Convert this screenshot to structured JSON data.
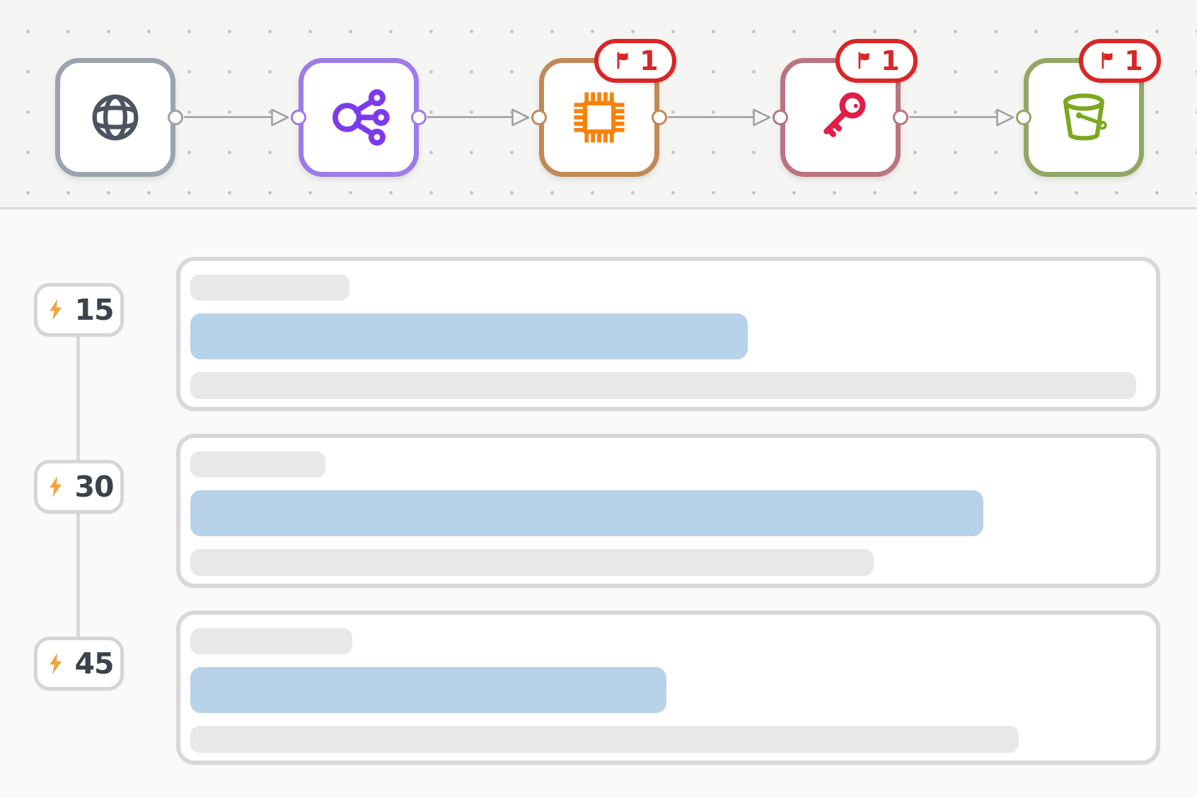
{
  "canvas": {
    "background_color": "#f5f5f3",
    "dot_color": "#c2c3c6",
    "connector_color": "#a9abb1",
    "nodes": [
      {
        "name": "node-globe",
        "icon": "globe-icon",
        "accent": "#9ca3af",
        "icon_color": "#4d5460",
        "input_port": false,
        "output_port": true,
        "flag_count": null
      },
      {
        "name": "node-load-balancer",
        "icon": "load-balancer-icon",
        "accent": "#9d7ce8",
        "icon_color": "#7c3aed",
        "input_port": true,
        "output_port": true,
        "flag_count": null
      },
      {
        "name": "node-cpu",
        "icon": "cpu-icon",
        "accent": "#c08a58",
        "icon_color": "#f7820d",
        "input_port": true,
        "output_port": true,
        "flag_count": "1"
      },
      {
        "name": "node-key",
        "icon": "key-icon",
        "accent": "#ba7580",
        "icon_color": "#e11d48",
        "input_port": true,
        "output_port": true,
        "flag_count": "1"
      },
      {
        "name": "node-bucket",
        "icon": "bucket-icon",
        "accent": "#92a765",
        "icon_color": "#7ca81f",
        "input_port": true,
        "output_port": false,
        "flag_count": "1"
      }
    ],
    "flag_badge_color": "#d92626"
  },
  "timeline": {
    "bolt_color": "#f0a440",
    "highlight_bar_color": "#b8d2ea",
    "muted_bar_color": "#e8e8e8",
    "entries": [
      {
        "label": "15",
        "bars": {
          "title_width": 225,
          "highlight_width": 788,
          "muted_width": 1337
        }
      },
      {
        "label": "30",
        "bars": {
          "title_width": 191,
          "highlight_width": 1121,
          "muted_width": 966
        }
      },
      {
        "label": "45",
        "bars": {
          "title_width": 229,
          "highlight_width": 673,
          "muted_width": 1171
        }
      }
    ]
  }
}
